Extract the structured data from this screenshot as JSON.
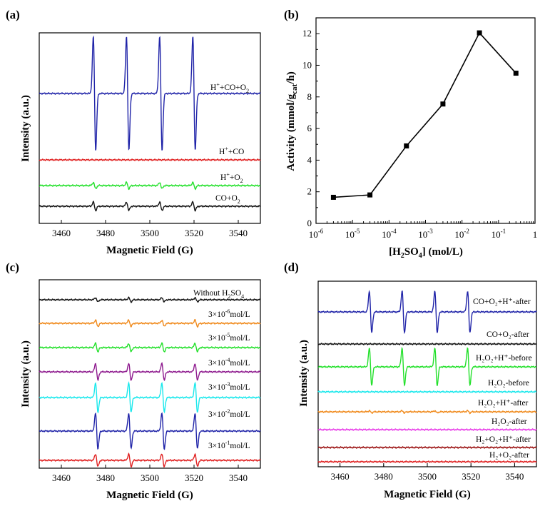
{
  "panels": {
    "a": {
      "label": "(a)"
    },
    "b": {
      "label": "(b)"
    },
    "c": {
      "label": "(c)"
    },
    "d": {
      "label": "(d)"
    }
  },
  "labels": {
    "xlabel_field": "Magnetic Field (G)",
    "ylabel_intensity": "Intensity (a.u.)",
    "b_ylabel_prefix": "Activity (mmol/g",
    "b_ylabel_sub": "cat",
    "b_ylabel_suffix": "/h)",
    "b_xlabel_open": "[H",
    "b_xlabel_sub": "2",
    "b_xlabel_mid": "SO",
    "b_xlabel_sub2": "4",
    "b_xlabel_close": "] (mol/L)"
  },
  "colors": {
    "blue": "#1f23a8",
    "red": "#e02020",
    "green": "#22e02a",
    "black": "#111111",
    "orange": "#f08a1c",
    "purple": "#8e1a8e",
    "cyan": "#19e8ec",
    "magenta": "#e83ce8",
    "darkred": "#9a1010"
  },
  "chart_data": [
    {
      "panel": "a",
      "type": "line",
      "title": "",
      "xlabel": "Magnetic Field (G)",
      "ylabel": "Intensity (a.u.)",
      "xlim": [
        3450,
        3550
      ],
      "xticks": [
        3460,
        3480,
        3500,
        3520,
        3540
      ],
      "peaks": [
        3475,
        3490,
        3505,
        3520
      ],
      "series": [
        {
          "name": "H⁺+CO+O₂",
          "main": "H",
          "sup": "+",
          "rest": "+CO+O",
          "sub": "2",
          "color": "#1f23a8",
          "amplitude": 0.55
        },
        {
          "name": "H⁺+CO",
          "main": "H",
          "sup": "+",
          "rest": "+CO",
          "sub": "",
          "color": "#e02020",
          "amplitude": 0.0
        },
        {
          "name": "H⁺+O₂",
          "main": "H",
          "sup": "+",
          "rest": "+O",
          "sub": "2",
          "color": "#22e02a",
          "amplitude": 0.03
        },
        {
          "name": "CO+O₂",
          "main": "CO+O",
          "sup": "",
          "rest": "",
          "sub": "2",
          "color": "#111111",
          "amplitude": 0.04
        }
      ]
    },
    {
      "panel": "b",
      "type": "line",
      "title": "",
      "xlabel": "[H2SO4] (mol/L)",
      "ylabel": "Activity (mmol/gcat/h)",
      "xscale": "log",
      "xlim_exp": [
        -6,
        0
      ],
      "ylim": [
        0,
        13
      ],
      "yticks": [
        0,
        2,
        4,
        6,
        8,
        10,
        12
      ],
      "xtick_labels": [
        "10",
        "10",
        "10",
        "10",
        "10",
        "10",
        "1"
      ],
      "xtick_exps": [
        "-6",
        "-5",
        "-4",
        "-3",
        "-2",
        "-1",
        ""
      ],
      "x": [
        3e-06,
        3e-05,
        0.0003,
        0.003,
        0.03,
        0.3
      ],
      "values": [
        1.65,
        1.8,
        4.9,
        7.55,
        12.05,
        9.5
      ]
    },
    {
      "panel": "c",
      "type": "line",
      "title": "",
      "xlabel": "Magnetic Field (G)",
      "ylabel": "Intensity (a.u.)",
      "xlim": [
        3450,
        3550
      ],
      "xticks": [
        3460,
        3480,
        3500,
        3520,
        3540
      ],
      "peaks": [
        3476,
        3491,
        3506,
        3521
      ],
      "series": [
        {
          "name": "Without H2SO4",
          "text": "Without  H",
          "sub": "2",
          "text2": "SO",
          "sub2": "4",
          "sup": "",
          "tail": "",
          "color": "#111111",
          "amplitude": 0.02
        },
        {
          "name": "3×10⁻⁶mol/L",
          "text": "3×10",
          "sup": "-6",
          "tail": "mol/L",
          "color": "#f08a1c",
          "amplitude": 0.03
        },
        {
          "name": "3×10⁻⁵mol/L",
          "text": "3×10",
          "sup": "-5",
          "tail": "mol/L",
          "color": "#22e02a",
          "amplitude": 0.04
        },
        {
          "name": "3×10⁻⁴mol/L",
          "text": "3×10",
          "sup": "-4",
          "tail": "mol/L",
          "color": "#8e1a8e",
          "amplitude": 0.08
        },
        {
          "name": "3×10⁻³mol/L",
          "text": "3×10",
          "sup": "-3",
          "tail": "mol/L",
          "color": "#19e8ec",
          "amplitude": 0.14
        },
        {
          "name": "3×10⁻²mol/L",
          "text": "3×10",
          "sup": "-2",
          "tail": "mol/L",
          "color": "#1f23a8",
          "amplitude": 0.17
        },
        {
          "name": "3×10⁻¹mol/L",
          "text": "3×10",
          "sup": "-1",
          "tail": "mol/L",
          "color": "#e02020",
          "amplitude": 0.06
        }
      ]
    },
    {
      "panel": "d",
      "type": "line",
      "title": "",
      "xlabel": "Magnetic Field (G)",
      "ylabel": "Intensity (a.u.)",
      "xlim": [
        3450,
        3550
      ],
      "xticks": [
        3460,
        3480,
        3500,
        3520,
        3540
      ],
      "peaks": [
        3474,
        3489,
        3504,
        3519
      ],
      "series": [
        {
          "name": "CO+O₂+H⁺-after",
          "color": "#1f23a8",
          "amplitude": 0.2
        },
        {
          "name": "CO+O₂-after",
          "color": "#111111",
          "amplitude": 0.0
        },
        {
          "name": "H₂O₂+H⁺-before",
          "color": "#22e02a",
          "amplitude": 0.18
        },
        {
          "name": "H₂O₂-before",
          "color": "#19e8ec",
          "amplitude": 0.0
        },
        {
          "name": "H₂O₂+H⁺-after",
          "color": "#f08a1c",
          "amplitude": 0.01
        },
        {
          "name": "H₂O₂-after",
          "color": "#e83ce8",
          "amplitude": 0.0
        },
        {
          "name": "H₂+O₂+H⁺-after",
          "color": "#9a1010",
          "amplitude": 0.0
        },
        {
          "name": "H₂+O₂-after",
          "color": "#e02020",
          "amplitude": 0.0
        }
      ]
    }
  ]
}
